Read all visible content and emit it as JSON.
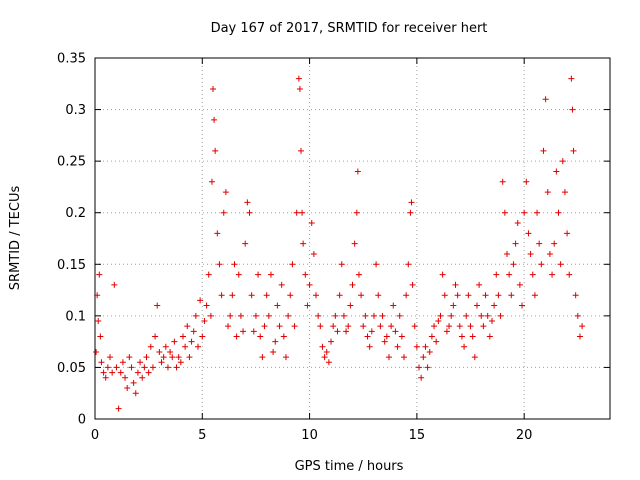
{
  "chart_data": {
    "type": "scatter",
    "title": "Day 167 of 2017, SRMTID for receiver hert",
    "xlabel": "GPS time / hours",
    "ylabel": "SRMTID / TECUs",
    "xlim": [
      0,
      24
    ],
    "ylim": [
      0,
      0.35
    ],
    "xticks": [
      0,
      5,
      10,
      15,
      20
    ],
    "xtick_labels": [
      "0",
      "5",
      "10",
      "15",
      "20"
    ],
    "yticks": [
      0,
      0.05,
      0.1,
      0.15,
      0.2,
      0.25,
      0.3,
      0.35
    ],
    "ytick_labels": [
      "0",
      "0.05",
      "0.1",
      "0.15",
      "0.2",
      "0.25",
      "0.3",
      "0.35"
    ],
    "grid": true,
    "marker": "+",
    "color": "#e00000",
    "series": [
      {
        "name": "SRMTID",
        "x": [
          0.05,
          0.1,
          0.15,
          0.2,
          0.25,
          0.3,
          0.4,
          0.5,
          0.6,
          0.7,
          0.8,
          0.9,
          1.0,
          1.1,
          1.2,
          1.3,
          1.4,
          1.5,
          1.6,
          1.7,
          1.8,
          1.9,
          2.0,
          2.1,
          2.2,
          2.3,
          2.4,
          2.5,
          2.6,
          2.7,
          2.8,
          2.9,
          3.0,
          3.1,
          3.2,
          3.3,
          3.4,
          3.5,
          3.6,
          3.7,
          3.8,
          3.9,
          4.0,
          4.1,
          4.2,
          4.3,
          4.4,
          4.5,
          4.6,
          4.7,
          4.8,
          4.9,
          5.0,
          5.1,
          5.2,
          5.3,
          5.4,
          5.45,
          5.5,
          5.55,
          5.6,
          5.7,
          5.8,
          5.9,
          6.0,
          6.1,
          6.2,
          6.3,
          6.4,
          6.5,
          6.6,
          6.7,
          6.8,
          6.9,
          7.0,
          7.1,
          7.2,
          7.3,
          7.4,
          7.5,
          7.6,
          7.7,
          7.8,
          7.9,
          8.0,
          8.1,
          8.2,
          8.3,
          8.4,
          8.5,
          8.6,
          8.7,
          8.8,
          8.9,
          9.0,
          9.1,
          9.2,
          9.3,
          9.4,
          9.5,
          9.55,
          9.6,
          9.65,
          9.7,
          9.8,
          9.9,
          10.0,
          10.1,
          10.2,
          10.3,
          10.4,
          10.5,
          10.6,
          10.7,
          10.8,
          10.9,
          11.0,
          11.1,
          11.2,
          11.3,
          11.4,
          11.5,
          11.6,
          11.7,
          11.8,
          11.9,
          12.0,
          12.1,
          12.2,
          12.25,
          12.3,
          12.4,
          12.5,
          12.6,
          12.7,
          12.8,
          12.9,
          13.0,
          13.1,
          13.2,
          13.3,
          13.4,
          13.5,
          13.6,
          13.7,
          13.8,
          13.9,
          14.0,
          14.1,
          14.2,
          14.3,
          14.4,
          14.5,
          14.6,
          14.7,
          14.75,
          14.8,
          14.9,
          15.0,
          15.1,
          15.2,
          15.3,
          15.4,
          15.5,
          15.6,
          15.7,
          15.8,
          15.9,
          16.0,
          16.1,
          16.2,
          16.3,
          16.4,
          16.5,
          16.6,
          16.7,
          16.8,
          16.9,
          17.0,
          17.1,
          17.2,
          17.3,
          17.4,
          17.5,
          17.6,
          17.7,
          17.8,
          17.9,
          18.0,
          18.1,
          18.2,
          18.3,
          18.4,
          18.5,
          18.6,
          18.7,
          18.8,
          18.9,
          19.0,
          19.1,
          19.2,
          19.3,
          19.4,
          19.5,
          19.6,
          19.7,
          19.8,
          19.9,
          20.0,
          20.1,
          20.2,
          20.3,
          20.4,
          20.5,
          20.6,
          20.7,
          20.8,
          20.9,
          21.0,
          21.1,
          21.2,
          21.3,
          21.4,
          21.5,
          21.6,
          21.7,
          21.8,
          21.9,
          22.0,
          22.1,
          22.2,
          22.25,
          22.3,
          22.4,
          22.5,
          22.6,
          22.7
        ],
        "y": [
          0.065,
          0.12,
          0.095,
          0.14,
          0.08,
          0.055,
          0.045,
          0.04,
          0.05,
          0.06,
          0.045,
          0.13,
          0.05,
          0.01,
          0.045,
          0.055,
          0.04,
          0.03,
          0.06,
          0.05,
          0.035,
          0.025,
          0.045,
          0.055,
          0.04,
          0.05,
          0.06,
          0.045,
          0.07,
          0.05,
          0.08,
          0.11,
          0.065,
          0.055,
          0.06,
          0.07,
          0.05,
          0.065,
          0.06,
          0.075,
          0.05,
          0.06,
          0.055,
          0.08,
          0.07,
          0.09,
          0.06,
          0.075,
          0.085,
          0.1,
          0.07,
          0.115,
          0.08,
          0.095,
          0.11,
          0.14,
          0.1,
          0.23,
          0.32,
          0.29,
          0.26,
          0.18,
          0.15,
          0.12,
          0.2,
          0.22,
          0.09,
          0.1,
          0.12,
          0.15,
          0.08,
          0.14,
          0.1,
          0.085,
          0.17,
          0.21,
          0.2,
          0.12,
          0.085,
          0.1,
          0.14,
          0.08,
          0.06,
          0.09,
          0.12,
          0.1,
          0.14,
          0.065,
          0.075,
          0.11,
          0.09,
          0.13,
          0.08,
          0.06,
          0.1,
          0.12,
          0.15,
          0.09,
          0.2,
          0.33,
          0.32,
          0.26,
          0.2,
          0.17,
          0.14,
          0.11,
          0.13,
          0.19,
          0.16,
          0.12,
          0.1,
          0.09,
          0.07,
          0.06,
          0.065,
          0.055,
          0.075,
          0.09,
          0.1,
          0.085,
          0.12,
          0.15,
          0.1,
          0.085,
          0.09,
          0.11,
          0.13,
          0.17,
          0.2,
          0.24,
          0.14,
          0.12,
          0.09,
          0.1,
          0.08,
          0.07,
          0.085,
          0.1,
          0.15,
          0.12,
          0.09,
          0.1,
          0.075,
          0.08,
          0.06,
          0.09,
          0.11,
          0.085,
          0.07,
          0.1,
          0.08,
          0.06,
          0.12,
          0.15,
          0.2,
          0.21,
          0.13,
          0.09,
          0.07,
          0.05,
          0.04,
          0.06,
          0.07,
          0.05,
          0.065,
          0.08,
          0.09,
          0.075,
          0.095,
          0.1,
          0.14,
          0.12,
          0.085,
          0.09,
          0.1,
          0.11,
          0.13,
          0.12,
          0.09,
          0.08,
          0.07,
          0.1,
          0.12,
          0.09,
          0.08,
          0.06,
          0.11,
          0.13,
          0.1,
          0.09,
          0.12,
          0.1,
          0.08,
          0.095,
          0.11,
          0.14,
          0.12,
          0.1,
          0.23,
          0.2,
          0.16,
          0.14,
          0.12,
          0.15,
          0.17,
          0.19,
          0.13,
          0.11,
          0.2,
          0.23,
          0.18,
          0.16,
          0.14,
          0.12,
          0.2,
          0.17,
          0.15,
          0.26,
          0.31,
          0.22,
          0.16,
          0.14,
          0.17,
          0.24,
          0.2,
          0.15,
          0.25,
          0.22,
          0.18,
          0.14,
          0.33,
          0.3,
          0.26,
          0.12,
          0.1,
          0.08,
          0.09
        ]
      }
    ]
  }
}
